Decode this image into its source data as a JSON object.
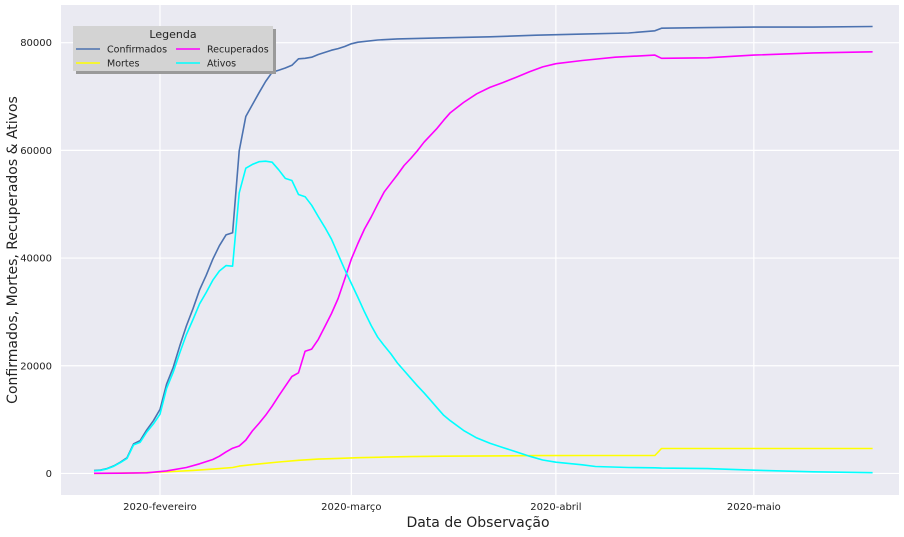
{
  "chart_data": {
    "type": "line",
    "xlabel": "Data de Observação",
    "ylabel": "Confirmados, Mortes, Recuperados & Ativos",
    "x_start": "2020-01-22",
    "x_end": "2020-05-19",
    "xlim": [
      "2020-01-17",
      "2020-05-23"
    ],
    "ylim": [
      -4000,
      87000
    ],
    "x_ticks": [
      {
        "date": "2020-02-01",
        "label": "2020-fevereiro"
      },
      {
        "date": "2020-03-01",
        "label": "2020-março"
      },
      {
        "date": "2020-04-01",
        "label": "2020-abril"
      },
      {
        "date": "2020-05-01",
        "label": "2020-maio"
      }
    ],
    "y_ticks": [
      {
        "value": 0,
        "label": "0"
      },
      {
        "value": 20000,
        "label": "20000"
      },
      {
        "value": 40000,
        "label": "40000"
      },
      {
        "value": 60000,
        "label": "60000"
      },
      {
        "value": 80000,
        "label": "80000"
      }
    ],
    "grid": true,
    "legend": {
      "title": "Legenda",
      "placement": "top-left",
      "columns": 2
    },
    "series": [
      {
        "name": "Confirmados",
        "color": "#4c72b0",
        "points": [
          [
            "2020-01-22",
            550
          ],
          [
            "2020-01-23",
            640
          ],
          [
            "2020-01-24",
            920
          ],
          [
            "2020-01-25",
            1400
          ],
          [
            "2020-01-26",
            2100
          ],
          [
            "2020-01-27",
            2900
          ],
          [
            "2020-01-28",
            5500
          ],
          [
            "2020-01-29",
            6100
          ],
          [
            "2020-01-30",
            8100
          ],
          [
            "2020-01-31",
            9800
          ],
          [
            "2020-02-01",
            11900
          ],
          [
            "2020-02-02",
            16600
          ],
          [
            "2020-02-03",
            19700
          ],
          [
            "2020-02-04",
            23700
          ],
          [
            "2020-02-05",
            27400
          ],
          [
            "2020-02-06",
            30600
          ],
          [
            "2020-02-07",
            34100
          ],
          [
            "2020-02-08",
            36800
          ],
          [
            "2020-02-09",
            39800
          ],
          [
            "2020-02-10",
            42300
          ],
          [
            "2020-02-11",
            44300
          ],
          [
            "2020-02-12",
            44700
          ],
          [
            "2020-02-13",
            59900
          ],
          [
            "2020-02-14",
            66300
          ],
          [
            "2020-02-15",
            68500
          ],
          [
            "2020-02-16",
            70700
          ],
          [
            "2020-02-17",
            72800
          ],
          [
            "2020-02-18",
            74500
          ],
          [
            "2020-02-19",
            74900
          ],
          [
            "2020-02-20",
            75300
          ],
          [
            "2020-02-21",
            75800
          ],
          [
            "2020-02-22",
            77000
          ],
          [
            "2020-02-23",
            77100
          ],
          [
            "2020-02-24",
            77300
          ],
          [
            "2020-02-25",
            77800
          ],
          [
            "2020-02-26",
            78200
          ],
          [
            "2020-02-27",
            78600
          ],
          [
            "2020-02-28",
            78900
          ],
          [
            "2020-02-29",
            79300
          ],
          [
            "2020-03-01",
            79800
          ],
          [
            "2020-03-02",
            80100
          ],
          [
            "2020-03-05",
            80500
          ],
          [
            "2020-03-08",
            80700
          ],
          [
            "2020-03-15",
            80900
          ],
          [
            "2020-03-22",
            81100
          ],
          [
            "2020-03-29",
            81400
          ],
          [
            "2020-04-05",
            81600
          ],
          [
            "2020-04-12",
            81800
          ],
          [
            "2020-04-16",
            82200
          ],
          [
            "2020-04-17",
            82700
          ],
          [
            "2020-04-24",
            82800
          ],
          [
            "2020-05-01",
            82900
          ],
          [
            "2020-05-10",
            82900
          ],
          [
            "2020-05-19",
            83000
          ]
        ]
      },
      {
        "name": "Mortes",
        "color": "#ffff00",
        "points": [
          [
            "2020-01-22",
            20
          ],
          [
            "2020-01-25",
            40
          ],
          [
            "2020-01-28",
            110
          ],
          [
            "2020-01-31",
            210
          ],
          [
            "2020-02-03",
            360
          ],
          [
            "2020-02-06",
            560
          ],
          [
            "2020-02-09",
            810
          ],
          [
            "2020-02-12",
            1110
          ],
          [
            "2020-02-13",
            1370
          ],
          [
            "2020-02-16",
            1770
          ],
          [
            "2020-02-19",
            2120
          ],
          [
            "2020-02-22",
            2440
          ],
          [
            "2020-02-25",
            2660
          ],
          [
            "2020-02-28",
            2790
          ],
          [
            "2020-03-02",
            2920
          ],
          [
            "2020-03-06",
            3040
          ],
          [
            "2020-03-10",
            3140
          ],
          [
            "2020-03-15",
            3200
          ],
          [
            "2020-03-22",
            3270
          ],
          [
            "2020-03-29",
            3310
          ],
          [
            "2020-04-05",
            3330
          ],
          [
            "2020-04-12",
            3340
          ],
          [
            "2020-04-16",
            3340
          ],
          [
            "2020-04-17",
            4640
          ],
          [
            "2020-04-24",
            4640
          ],
          [
            "2020-05-01",
            4640
          ],
          [
            "2020-05-10",
            4640
          ],
          [
            "2020-05-19",
            4640
          ]
        ]
      },
      {
        "name": "Recuperados",
        "color": "#ff00ff",
        "points": [
          [
            "2020-01-22",
            30
          ],
          [
            "2020-01-26",
            50
          ],
          [
            "2020-01-30",
            130
          ],
          [
            "2020-02-02",
            470
          ],
          [
            "2020-02-05",
            1100
          ],
          [
            "2020-02-07",
            1800
          ],
          [
            "2020-02-09",
            2600
          ],
          [
            "2020-02-10",
            3200
          ],
          [
            "2020-02-11",
            4000
          ],
          [
            "2020-02-12",
            4700
          ],
          [
            "2020-02-13",
            5100
          ],
          [
            "2020-02-14",
            6200
          ],
          [
            "2020-02-15",
            7900
          ],
          [
            "2020-02-16",
            9300
          ],
          [
            "2020-02-17",
            10800
          ],
          [
            "2020-02-18",
            12500
          ],
          [
            "2020-02-19",
            14400
          ],
          [
            "2020-02-20",
            16200
          ],
          [
            "2020-02-21",
            18000
          ],
          [
            "2020-02-22",
            18700
          ],
          [
            "2020-02-23",
            22700
          ],
          [
            "2020-02-24",
            23100
          ],
          [
            "2020-02-25",
            24900
          ],
          [
            "2020-02-26",
            27300
          ],
          [
            "2020-02-27",
            29700
          ],
          [
            "2020-02-28",
            32500
          ],
          [
            "2020-02-29",
            36100
          ],
          [
            "2020-03-01",
            39800
          ],
          [
            "2020-03-02",
            42700
          ],
          [
            "2020-03-03",
            45400
          ],
          [
            "2020-03-04",
            47600
          ],
          [
            "2020-03-05",
            50000
          ],
          [
            "2020-03-06",
            52300
          ],
          [
            "2020-03-07",
            53900
          ],
          [
            "2020-03-08",
            55500
          ],
          [
            "2020-03-09",
            57200
          ],
          [
            "2020-03-10",
            58500
          ],
          [
            "2020-03-11",
            59900
          ],
          [
            "2020-03-12",
            61500
          ],
          [
            "2020-03-13",
            62800
          ],
          [
            "2020-03-14",
            64100
          ],
          [
            "2020-03-15",
            65600
          ],
          [
            "2020-03-16",
            67000
          ],
          [
            "2020-03-18",
            68900
          ],
          [
            "2020-03-20",
            70500
          ],
          [
            "2020-03-22",
            71700
          ],
          [
            "2020-03-24",
            72600
          ],
          [
            "2020-03-26",
            73600
          ],
          [
            "2020-03-28",
            74600
          ],
          [
            "2020-03-30",
            75500
          ],
          [
            "2020-04-01",
            76100
          ],
          [
            "2020-04-05",
            76700
          ],
          [
            "2020-04-10",
            77300
          ],
          [
            "2020-04-16",
            77700
          ],
          [
            "2020-04-17",
            77100
          ],
          [
            "2020-04-24",
            77200
          ],
          [
            "2020-05-01",
            77700
          ],
          [
            "2020-05-10",
            78100
          ],
          [
            "2020-05-19",
            78300
          ]
        ]
      },
      {
        "name": "Ativos",
        "color": "#00ffff",
        "points": [
          [
            "2020-01-22",
            500
          ],
          [
            "2020-01-23",
            580
          ],
          [
            "2020-01-24",
            870
          ],
          [
            "2020-01-25",
            1340
          ],
          [
            "2020-01-26",
            2010
          ],
          [
            "2020-01-27",
            2780
          ],
          [
            "2020-01-28",
            5300
          ],
          [
            "2020-01-29",
            5800
          ],
          [
            "2020-01-30",
            7700
          ],
          [
            "2020-01-31",
            9200
          ],
          [
            "2020-02-01",
            11000
          ],
          [
            "2020-02-02",
            15800
          ],
          [
            "2020-02-03",
            18800
          ],
          [
            "2020-02-04",
            22400
          ],
          [
            "2020-02-05",
            25800
          ],
          [
            "2020-02-06",
            28600
          ],
          [
            "2020-02-07",
            31500
          ],
          [
            "2020-02-08",
            33600
          ],
          [
            "2020-02-09",
            35900
          ],
          [
            "2020-02-10",
            37600
          ],
          [
            "2020-02-11",
            38600
          ],
          [
            "2020-02-12",
            38500
          ],
          [
            "2020-02-13",
            52100
          ],
          [
            "2020-02-14",
            56700
          ],
          [
            "2020-02-15",
            57400
          ],
          [
            "2020-02-16",
            57900
          ],
          [
            "2020-02-17",
            58000
          ],
          [
            "2020-02-18",
            57800
          ],
          [
            "2020-02-19",
            56400
          ],
          [
            "2020-02-20",
            54800
          ],
          [
            "2020-02-21",
            54400
          ],
          [
            "2020-02-22",
            51800
          ],
          [
            "2020-02-23",
            51400
          ],
          [
            "2020-02-24",
            49800
          ],
          [
            "2020-02-25",
            47700
          ],
          [
            "2020-02-26",
            45700
          ],
          [
            "2020-02-27",
            43500
          ],
          [
            "2020-02-28",
            40700
          ],
          [
            "2020-02-29",
            37900
          ],
          [
            "2020-03-01",
            35300
          ],
          [
            "2020-03-02",
            32700
          ],
          [
            "2020-03-03",
            30000
          ],
          [
            "2020-03-04",
            27500
          ],
          [
            "2020-03-05",
            25300
          ],
          [
            "2020-03-06",
            23700
          ],
          [
            "2020-03-07",
            22200
          ],
          [
            "2020-03-08",
            20500
          ],
          [
            "2020-03-09",
            19100
          ],
          [
            "2020-03-10",
            17700
          ],
          [
            "2020-03-11",
            16300
          ],
          [
            "2020-03-12",
            15000
          ],
          [
            "2020-03-13",
            13600
          ],
          [
            "2020-03-14",
            12200
          ],
          [
            "2020-03-15",
            10800
          ],
          [
            "2020-03-16",
            9800
          ],
          [
            "2020-03-18",
            8000
          ],
          [
            "2020-03-20",
            6600
          ],
          [
            "2020-03-22",
            5600
          ],
          [
            "2020-03-24",
            4800
          ],
          [
            "2020-03-26",
            4000
          ],
          [
            "2020-03-28",
            3200
          ],
          [
            "2020-03-30",
            2500
          ],
          [
            "2020-04-01",
            2100
          ],
          [
            "2020-04-05",
            1600
          ],
          [
            "2020-04-07",
            1300
          ],
          [
            "2020-04-12",
            1100
          ],
          [
            "2020-04-16",
            1050
          ],
          [
            "2020-04-17",
            1000
          ],
          [
            "2020-04-24",
            900
          ],
          [
            "2020-05-01",
            600
          ],
          [
            "2020-05-10",
            300
          ],
          [
            "2020-05-19",
            150
          ]
        ]
      }
    ]
  }
}
